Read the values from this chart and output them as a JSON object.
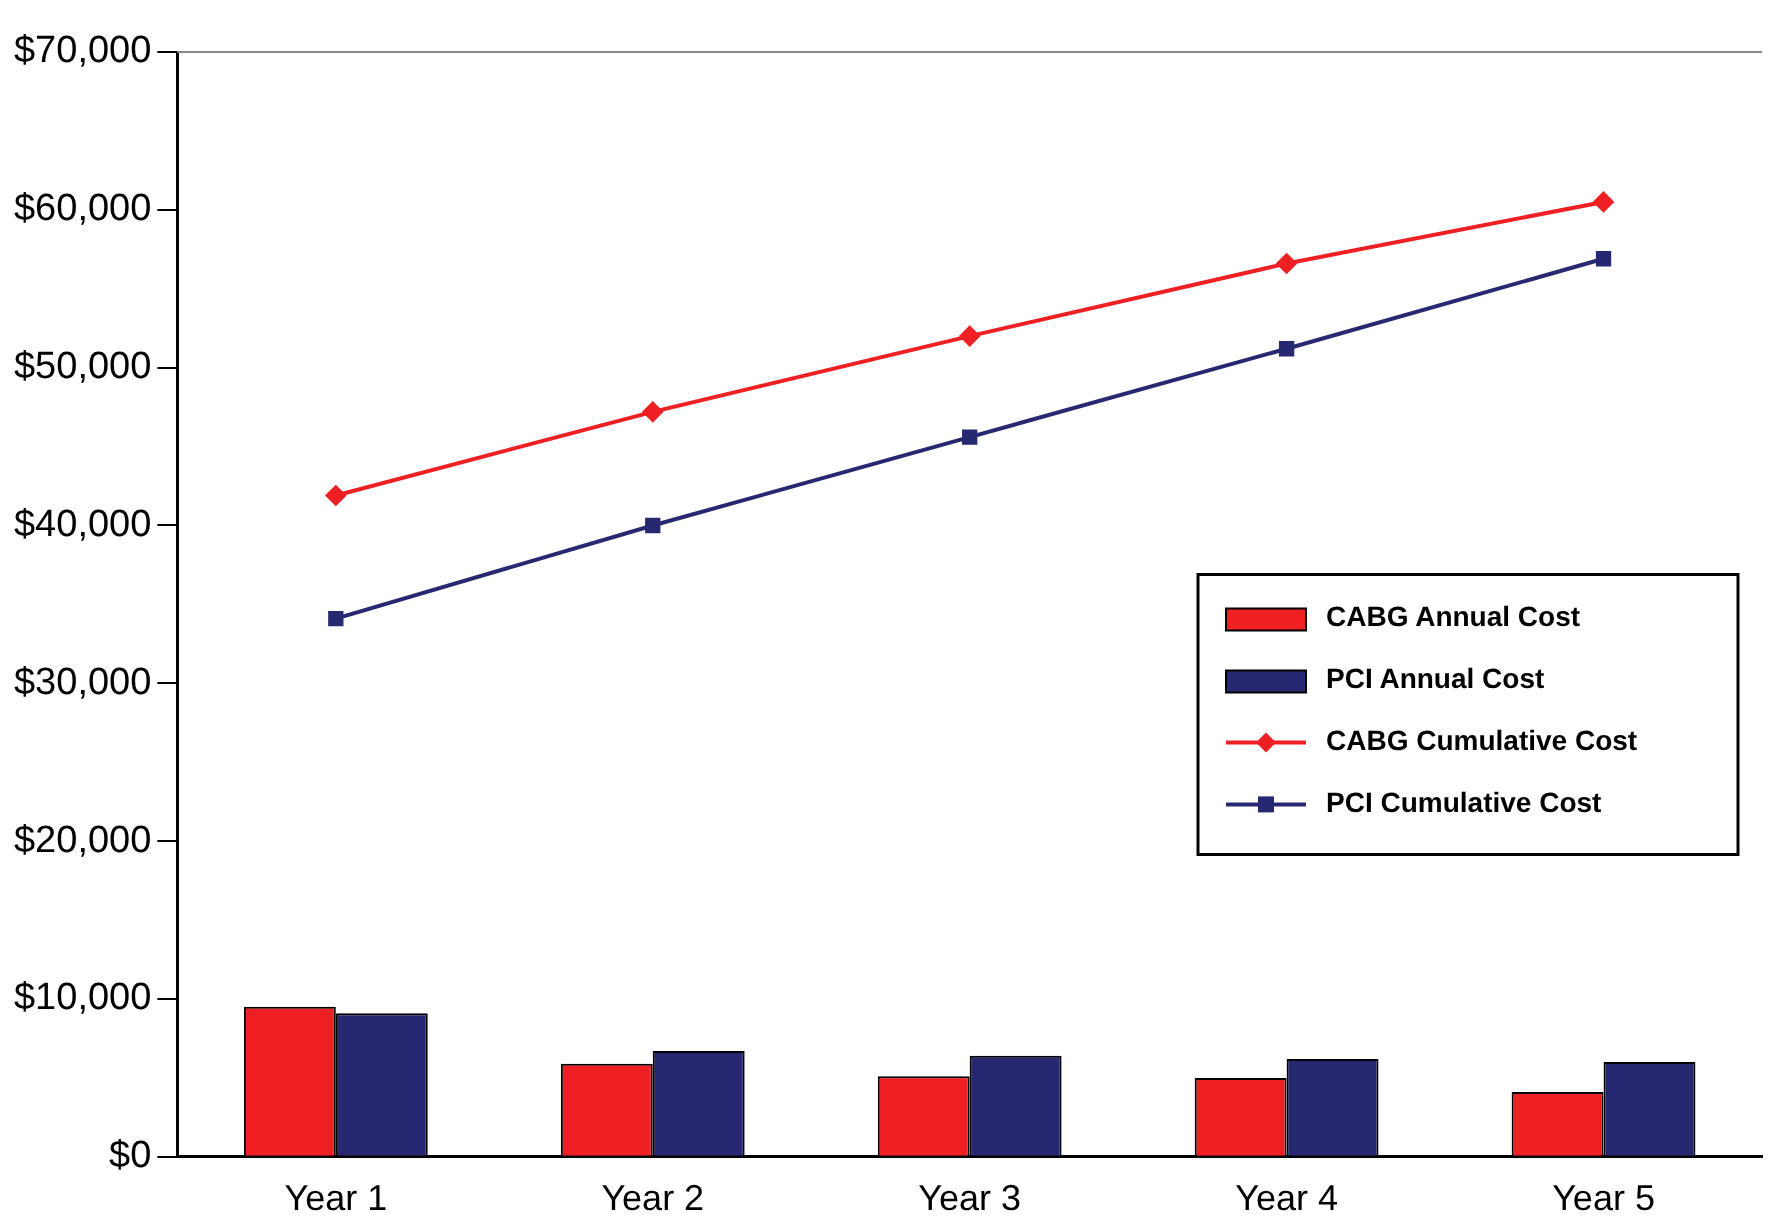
{
  "chart_data": {
    "type": "bar",
    "categories": [
      "Year 1",
      "Year 2",
      "Year 3",
      "Year 4",
      "Year 5"
    ],
    "series": [
      {
        "name": "CABG Annual Cost",
        "color": "#ee2024",
        "values": [
          9500,
          5900,
          5100,
          5000,
          4100
        ]
      },
      {
        "name": "PCI Annual Cost",
        "color": "#262872",
        "values": [
          9100,
          6700,
          6400,
          6200,
          6000
        ]
      },
      {
        "name": "CABG Cumulative Cost",
        "type": "line",
        "marker": "diamond",
        "color": "#ee2024",
        "values": [
          41900,
          47200,
          52000,
          56600,
          60500
        ]
      },
      {
        "name": "PCI Cumulative Cost",
        "type": "line",
        "marker": "square",
        "color": "#262872",
        "values": [
          34100,
          40000,
          45600,
          51200,
          56900
        ]
      }
    ],
    "ylim": [
      0,
      70000
    ],
    "yticks": [
      {
        "value": 0,
        "label": "$0"
      },
      {
        "value": 10000,
        "label": "$10,000"
      },
      {
        "value": 20000,
        "label": "$20,000"
      },
      {
        "value": 30000,
        "label": "$30,000"
      },
      {
        "value": 40000,
        "label": "$40,000"
      },
      {
        "value": 50000,
        "label": "$50,000"
      },
      {
        "value": 60000,
        "label": "$60,000"
      },
      {
        "value": 70000,
        "label": "$70,000"
      }
    ],
    "grid": false,
    "legend": "right"
  }
}
